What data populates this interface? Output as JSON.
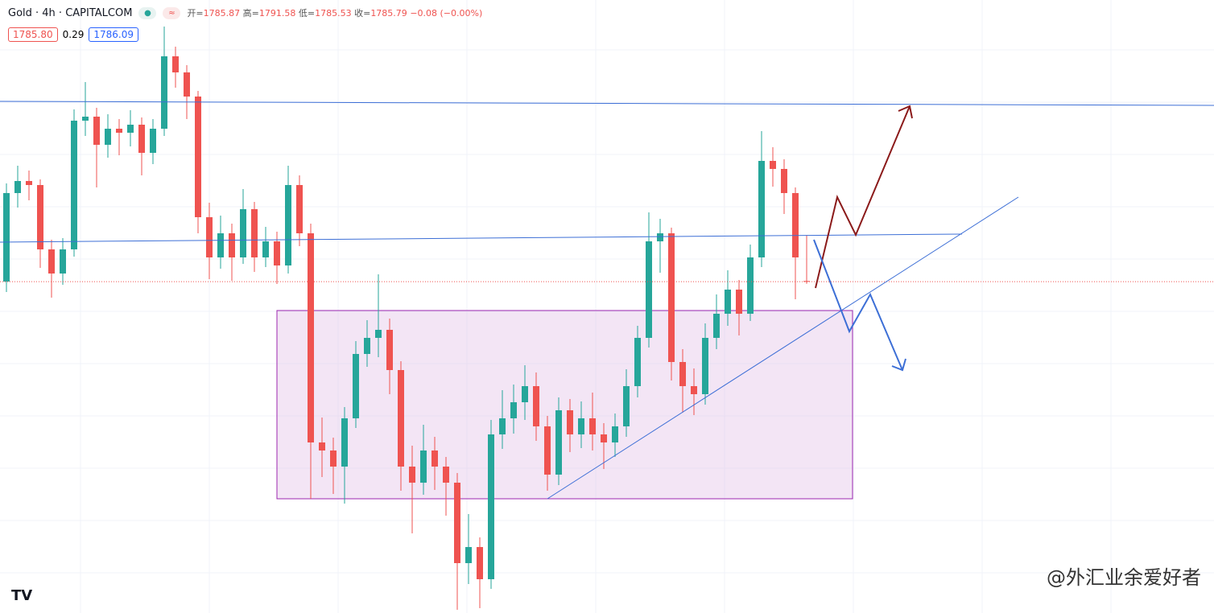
{
  "header": {
    "symbol": "Gold · 4h · CAPITALCOM",
    "ohlc_labels": [
      "开=",
      "高=",
      "低=",
      "收="
    ],
    "change": "−0.08 (−0.00%)",
    "bid": "1785.80",
    "spread": "0.29",
    "ask": "1786.09"
  },
  "chart_data": {
    "type": "candlestick",
    "ylim": [
      1744.6,
      1820.8
    ],
    "up_color": "#26a69a",
    "down_color": "#ef5350",
    "candles": [
      [
        1785.8,
        1798.0,
        1784.5,
        1796.8
      ],
      [
        1796.8,
        1800.2,
        1795.0,
        1798.3
      ],
      [
        1798.3,
        1799.6,
        1795.9,
        1797.8
      ],
      [
        1797.8,
        1798.5,
        1787.5,
        1789.8
      ],
      [
        1789.8,
        1791.0,
        1783.8,
        1786.8
      ],
      [
        1786.8,
        1791.2,
        1785.4,
        1789.8
      ],
      [
        1789.8,
        1807.2,
        1788.9,
        1805.8
      ],
      [
        1805.8,
        1810.6,
        1803.9,
        1806.3
      ],
      [
        1806.3,
        1807.4,
        1797.5,
        1802.8
      ],
      [
        1802.8,
        1806.6,
        1801.2,
        1804.8
      ],
      [
        1804.8,
        1806.0,
        1801.5,
        1804.3
      ],
      [
        1804.3,
        1807.1,
        1802.6,
        1805.3
      ],
      [
        1805.3,
        1806.2,
        1799.0,
        1801.8
      ],
      [
        1801.8,
        1806.0,
        1800.4,
        1804.8
      ],
      [
        1804.8,
        1817.5,
        1803.9,
        1813.8
      ],
      [
        1813.8,
        1815.0,
        1809.9,
        1811.8
      ],
      [
        1811.8,
        1812.7,
        1806.0,
        1808.8
      ],
      [
        1808.8,
        1809.5,
        1791.8,
        1793.8
      ],
      [
        1793.8,
        1795.6,
        1786.1,
        1788.8
      ],
      [
        1788.8,
        1794.0,
        1787.4,
        1791.8
      ],
      [
        1791.8,
        1793.0,
        1785.9,
        1788.8
      ],
      [
        1788.8,
        1797.3,
        1788.0,
        1794.8
      ],
      [
        1794.8,
        1795.7,
        1787.0,
        1788.8
      ],
      [
        1788.8,
        1792.6,
        1787.6,
        1790.8
      ],
      [
        1790.8,
        1792.0,
        1785.5,
        1787.8
      ],
      [
        1787.8,
        1800.2,
        1786.8,
        1797.8
      ],
      [
        1797.8,
        1799.0,
        1790.2,
        1791.8
      ],
      [
        1791.8,
        1793.0,
        1758.8,
        1765.8
      ],
      [
        1765.8,
        1768.9,
        1761.5,
        1764.8
      ],
      [
        1764.8,
        1766.4,
        1759.4,
        1762.8
      ],
      [
        1762.8,
        1770.2,
        1758.2,
        1768.8
      ],
      [
        1768.8,
        1778.4,
        1767.6,
        1776.8
      ],
      [
        1776.8,
        1781.0,
        1775.2,
        1778.8
      ],
      [
        1778.8,
        1786.7,
        1776.4,
        1779.8
      ],
      [
        1779.8,
        1781.2,
        1771.8,
        1774.8
      ],
      [
        1774.8,
        1775.9,
        1759.8,
        1762.8
      ],
      [
        1762.8,
        1765.4,
        1754.5,
        1760.8
      ],
      [
        1760.8,
        1768.0,
        1759.3,
        1764.8
      ],
      [
        1764.8,
        1766.5,
        1759.9,
        1762.8
      ],
      [
        1762.8,
        1764.0,
        1756.7,
        1760.8
      ],
      [
        1760.8,
        1762.0,
        1745.0,
        1750.8
      ],
      [
        1750.8,
        1756.9,
        1748.2,
        1752.8
      ],
      [
        1752.8,
        1754.0,
        1745.2,
        1748.8
      ],
      [
        1748.8,
        1768.6,
        1747.6,
        1766.8
      ],
      [
        1766.8,
        1772.3,
        1765.0,
        1768.8
      ],
      [
        1768.8,
        1773.0,
        1766.9,
        1770.8
      ],
      [
        1770.8,
        1775.4,
        1768.6,
        1772.8
      ],
      [
        1772.8,
        1774.5,
        1766.0,
        1767.8
      ],
      [
        1767.8,
        1769.1,
        1759.8,
        1761.8
      ],
      [
        1761.8,
        1771.4,
        1760.5,
        1769.8
      ],
      [
        1769.8,
        1771.2,
        1764.6,
        1766.8
      ],
      [
        1766.8,
        1770.9,
        1765.1,
        1768.8
      ],
      [
        1768.8,
        1772.0,
        1764.8,
        1766.8
      ],
      [
        1766.8,
        1768.2,
        1762.5,
        1765.8
      ],
      [
        1765.8,
        1769.4,
        1764.0,
        1767.8
      ],
      [
        1767.8,
        1774.9,
        1766.5,
        1772.8
      ],
      [
        1772.8,
        1780.3,
        1771.4,
        1778.8
      ],
      [
        1778.8,
        1794.4,
        1777.6,
        1790.8
      ],
      [
        1790.8,
        1793.6,
        1786.9,
        1791.8
      ],
      [
        1791.8,
        1792.5,
        1773.5,
        1775.8
      ],
      [
        1775.8,
        1777.4,
        1769.5,
        1772.8
      ],
      [
        1772.8,
        1775.0,
        1769.2,
        1771.8
      ],
      [
        1771.8,
        1780.6,
        1770.5,
        1778.8
      ],
      [
        1778.8,
        1784.2,
        1777.4,
        1781.8
      ],
      [
        1781.8,
        1787.2,
        1780.3,
        1784.8
      ],
      [
        1784.8,
        1786.0,
        1779.1,
        1781.8
      ],
      [
        1781.8,
        1790.4,
        1780.9,
        1788.8
      ],
      [
        1788.8,
        1804.5,
        1787.6,
        1800.8
      ],
      [
        1800.8,
        1802.5,
        1797.6,
        1799.8
      ],
      [
        1799.8,
        1801.0,
        1794.2,
        1796.8
      ],
      [
        1796.8,
        1797.5,
        1783.6,
        1788.8
      ],
      [
        1785.87,
        1791.58,
        1785.53,
        1785.79
      ]
    ]
  },
  "watermark": "@外汇业余爱好者"
}
